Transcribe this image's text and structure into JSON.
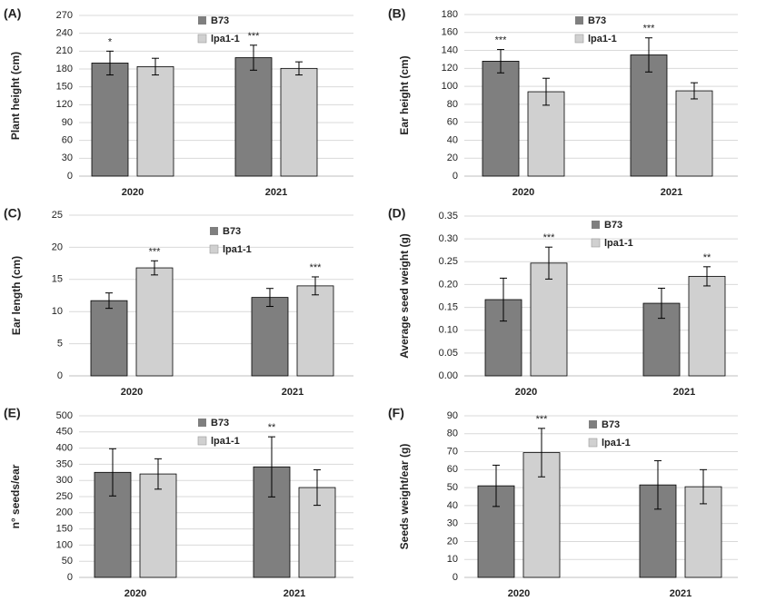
{
  "colors": {
    "b73": "#7f7f7f",
    "lpa": "#d0d0d0",
    "grid": "#d9d9d9",
    "axis": "#bfbfbf",
    "text": "#222222"
  },
  "chart_data": [
    {
      "panel": "(A)",
      "type": "bar",
      "ylabel": "Plant height (cm)",
      "ylim": [
        0,
        270
      ],
      "yticks": [
        0,
        30,
        60,
        90,
        120,
        150,
        180,
        210,
        240,
        270
      ],
      "categories": [
        "2020",
        "2021"
      ],
      "legend_position": "top-center",
      "series": [
        {
          "name": "B73",
          "values": [
            190,
            199
          ],
          "errors": [
            20,
            21
          ],
          "stars": [
            "*",
            "***"
          ]
        },
        {
          "name": "lpa1-1",
          "values": [
            184,
            181
          ],
          "errors": [
            14,
            11
          ],
          "stars": [
            "",
            ""
          ]
        }
      ]
    },
    {
      "panel": "(B)",
      "type": "bar",
      "ylabel": "Ear height (cm)",
      "ylim": [
        0,
        180
      ],
      "yticks": [
        0,
        20,
        40,
        60,
        80,
        100,
        120,
        140,
        160,
        180
      ],
      "categories": [
        "2020",
        "2021"
      ],
      "legend_position": "top-center",
      "series": [
        {
          "name": "B73",
          "values": [
            128,
            135
          ],
          "errors": [
            13,
            19
          ],
          "stars": [
            "***",
            "***"
          ]
        },
        {
          "name": "lpa1-1",
          "values": [
            94,
            95
          ],
          "errors": [
            15,
            9
          ],
          "stars": [
            "",
            ""
          ]
        }
      ]
    },
    {
      "panel": "(C)",
      "type": "bar",
      "ylabel": "Ear length (cm)",
      "ylim": [
        0,
        25
      ],
      "yticks": [
        0,
        5,
        10,
        15,
        20,
        25
      ],
      "categories": [
        "2020",
        "2021"
      ],
      "legend_position": "top-center",
      "series": [
        {
          "name": "B73",
          "values": [
            11.7,
            12.2
          ],
          "errors": [
            1.2,
            1.4
          ],
          "stars": [
            "",
            ""
          ]
        },
        {
          "name": "lpa1-1",
          "values": [
            16.8,
            14.0
          ],
          "errors": [
            1.1,
            1.4
          ],
          "stars": [
            "***",
            "***"
          ]
        }
      ]
    },
    {
      "panel": "(D)",
      "type": "bar",
      "ylabel": "Average seed weight (g)",
      "ylim": [
        0,
        0.35
      ],
      "yticks": [
        "0.00",
        "0.05",
        "0.10",
        "0.15",
        "0.20",
        "0.25",
        "0.30",
        "0.35"
      ],
      "categories": [
        "2020",
        "2021"
      ],
      "legend_position": "top-center",
      "series": [
        {
          "name": "B73",
          "values": [
            0.167,
            0.159
          ],
          "errors": [
            0.047,
            0.033
          ],
          "stars": [
            "",
            ""
          ]
        },
        {
          "name": "lpa1-1",
          "values": [
            0.247,
            0.218
          ],
          "errors": [
            0.035,
            0.021
          ],
          "stars": [
            "***",
            "**"
          ]
        }
      ]
    },
    {
      "panel": "(E)",
      "type": "bar",
      "ylabel": "n° seeds/ear",
      "ylim": [
        0,
        500
      ],
      "yticks": [
        0,
        50,
        100,
        150,
        200,
        250,
        300,
        350,
        400,
        450,
        500
      ],
      "categories": [
        "2020",
        "2021"
      ],
      "legend_position": "top-center",
      "series": [
        {
          "name": "B73",
          "values": [
            325,
            342
          ],
          "errors": [
            73,
            93
          ],
          "stars": [
            "",
            "**"
          ]
        },
        {
          "name": "lpa1-1",
          "values": [
            320,
            278
          ],
          "errors": [
            47,
            55
          ],
          "stars": [
            "",
            ""
          ]
        }
      ]
    },
    {
      "panel": "(F)",
      "type": "bar",
      "ylabel": "Seeds weight/ear (g)",
      "ylim": [
        0,
        90
      ],
      "yticks": [
        0,
        10,
        20,
        30,
        40,
        50,
        60,
        70,
        80,
        90
      ],
      "categories": [
        "2020",
        "2021"
      ],
      "legend_position": "top-center",
      "series": [
        {
          "name": "B73",
          "values": [
            51,
            51.5
          ],
          "errors": [
            11.5,
            13.5
          ],
          "stars": [
            "",
            ""
          ]
        },
        {
          "name": "lpa1-1",
          "values": [
            69.5,
            50.5
          ],
          "errors": [
            13.5,
            9.5
          ],
          "stars": [
            "***",
            ""
          ]
        }
      ]
    }
  ]
}
